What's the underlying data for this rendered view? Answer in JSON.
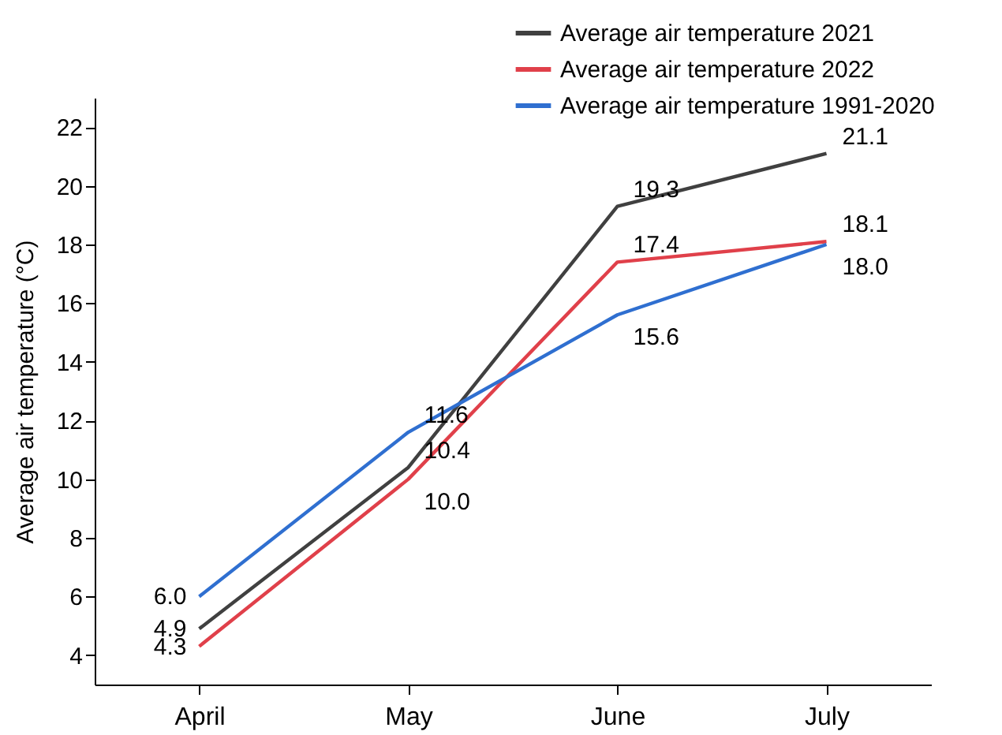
{
  "chart_data": {
    "type": "line",
    "ylabel": "Average air temperature (°C)",
    "categories": [
      "April",
      "May",
      "June",
      "July"
    ],
    "series": [
      {
        "name": "Average air temperature 2021",
        "color": "#404040",
        "values": [
          4.9,
          10.4,
          19.3,
          21.1
        ],
        "value_labels": [
          "4.9",
          "10.4",
          "19.3",
          "21.1"
        ]
      },
      {
        "name": "Average air temperature 2022",
        "color": "#e0404a",
        "values": [
          4.3,
          10.0,
          17.4,
          18.1
        ],
        "value_labels": [
          "4.3",
          "10.0",
          "17.4",
          "18.1"
        ]
      },
      {
        "name": "Average air temperature 1991-2020",
        "color": "#2f6fd0",
        "values": [
          6.0,
          11.6,
          15.6,
          18.0
        ],
        "value_labels": [
          "6.0",
          "11.6",
          "15.6",
          "18.0"
        ]
      }
    ],
    "ylim": [
      3,
      23
    ],
    "yticks": [
      4,
      6,
      8,
      10,
      12,
      14,
      16,
      18,
      20,
      22
    ],
    "legend": "top right",
    "grid": false,
    "marker": "none",
    "line_style": "solid"
  }
}
